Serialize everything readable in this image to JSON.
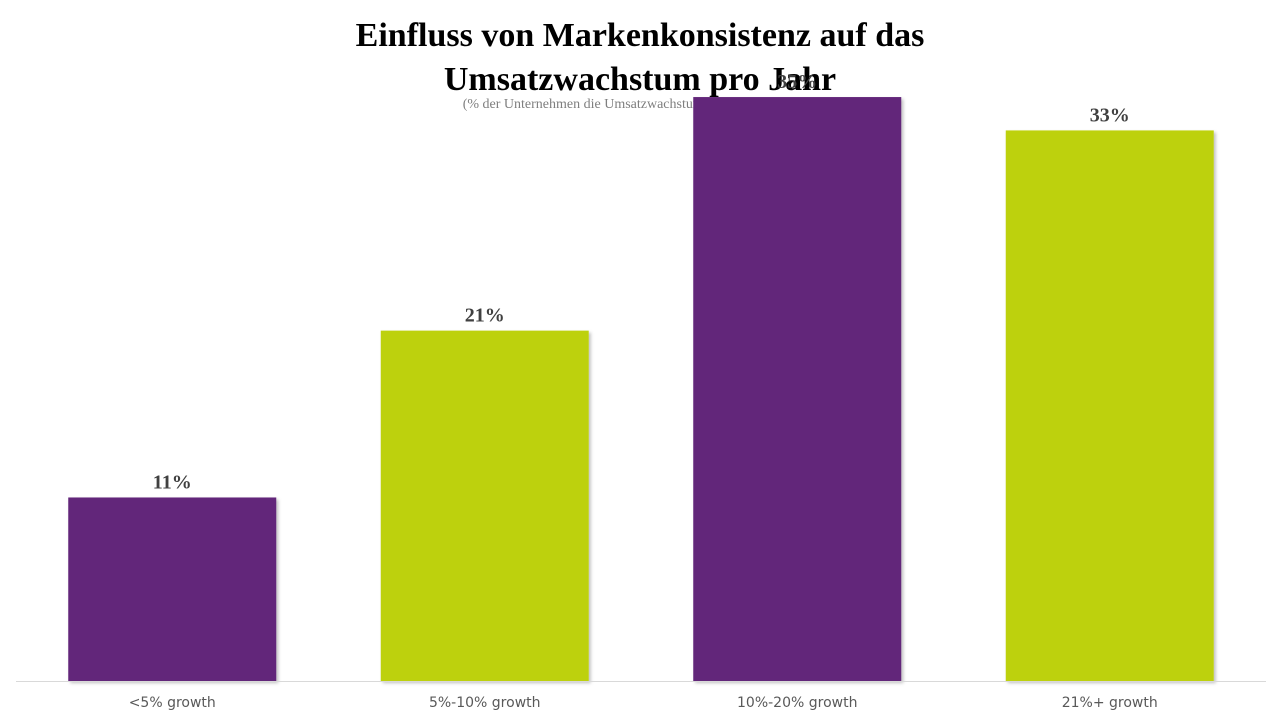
{
  "chart_data": {
    "type": "bar",
    "title_lines": [
      "Einfluss von Markenkonsistenz auf das",
      "Umsatzwachstum pro Jahr"
    ],
    "subtitle": "(% der Unternehmen die Umsatzwachstum feststellen konnten)",
    "categories": [
      "<5% growth",
      "5%-10% growth",
      "10%-20% growth",
      "21%+ growth"
    ],
    "values": [
      11,
      21,
      35,
      33
    ],
    "data_labels": [
      "11%",
      "21%",
      "35%",
      "33%"
    ],
    "unit": "%",
    "ylim": [
      0,
      38
    ],
    "grid": false,
    "legend": "none",
    "colors": [
      "#62267a",
      "#bdd10f",
      "#62267a",
      "#bdd10f"
    ],
    "axis_color": "#d9d9d9"
  }
}
